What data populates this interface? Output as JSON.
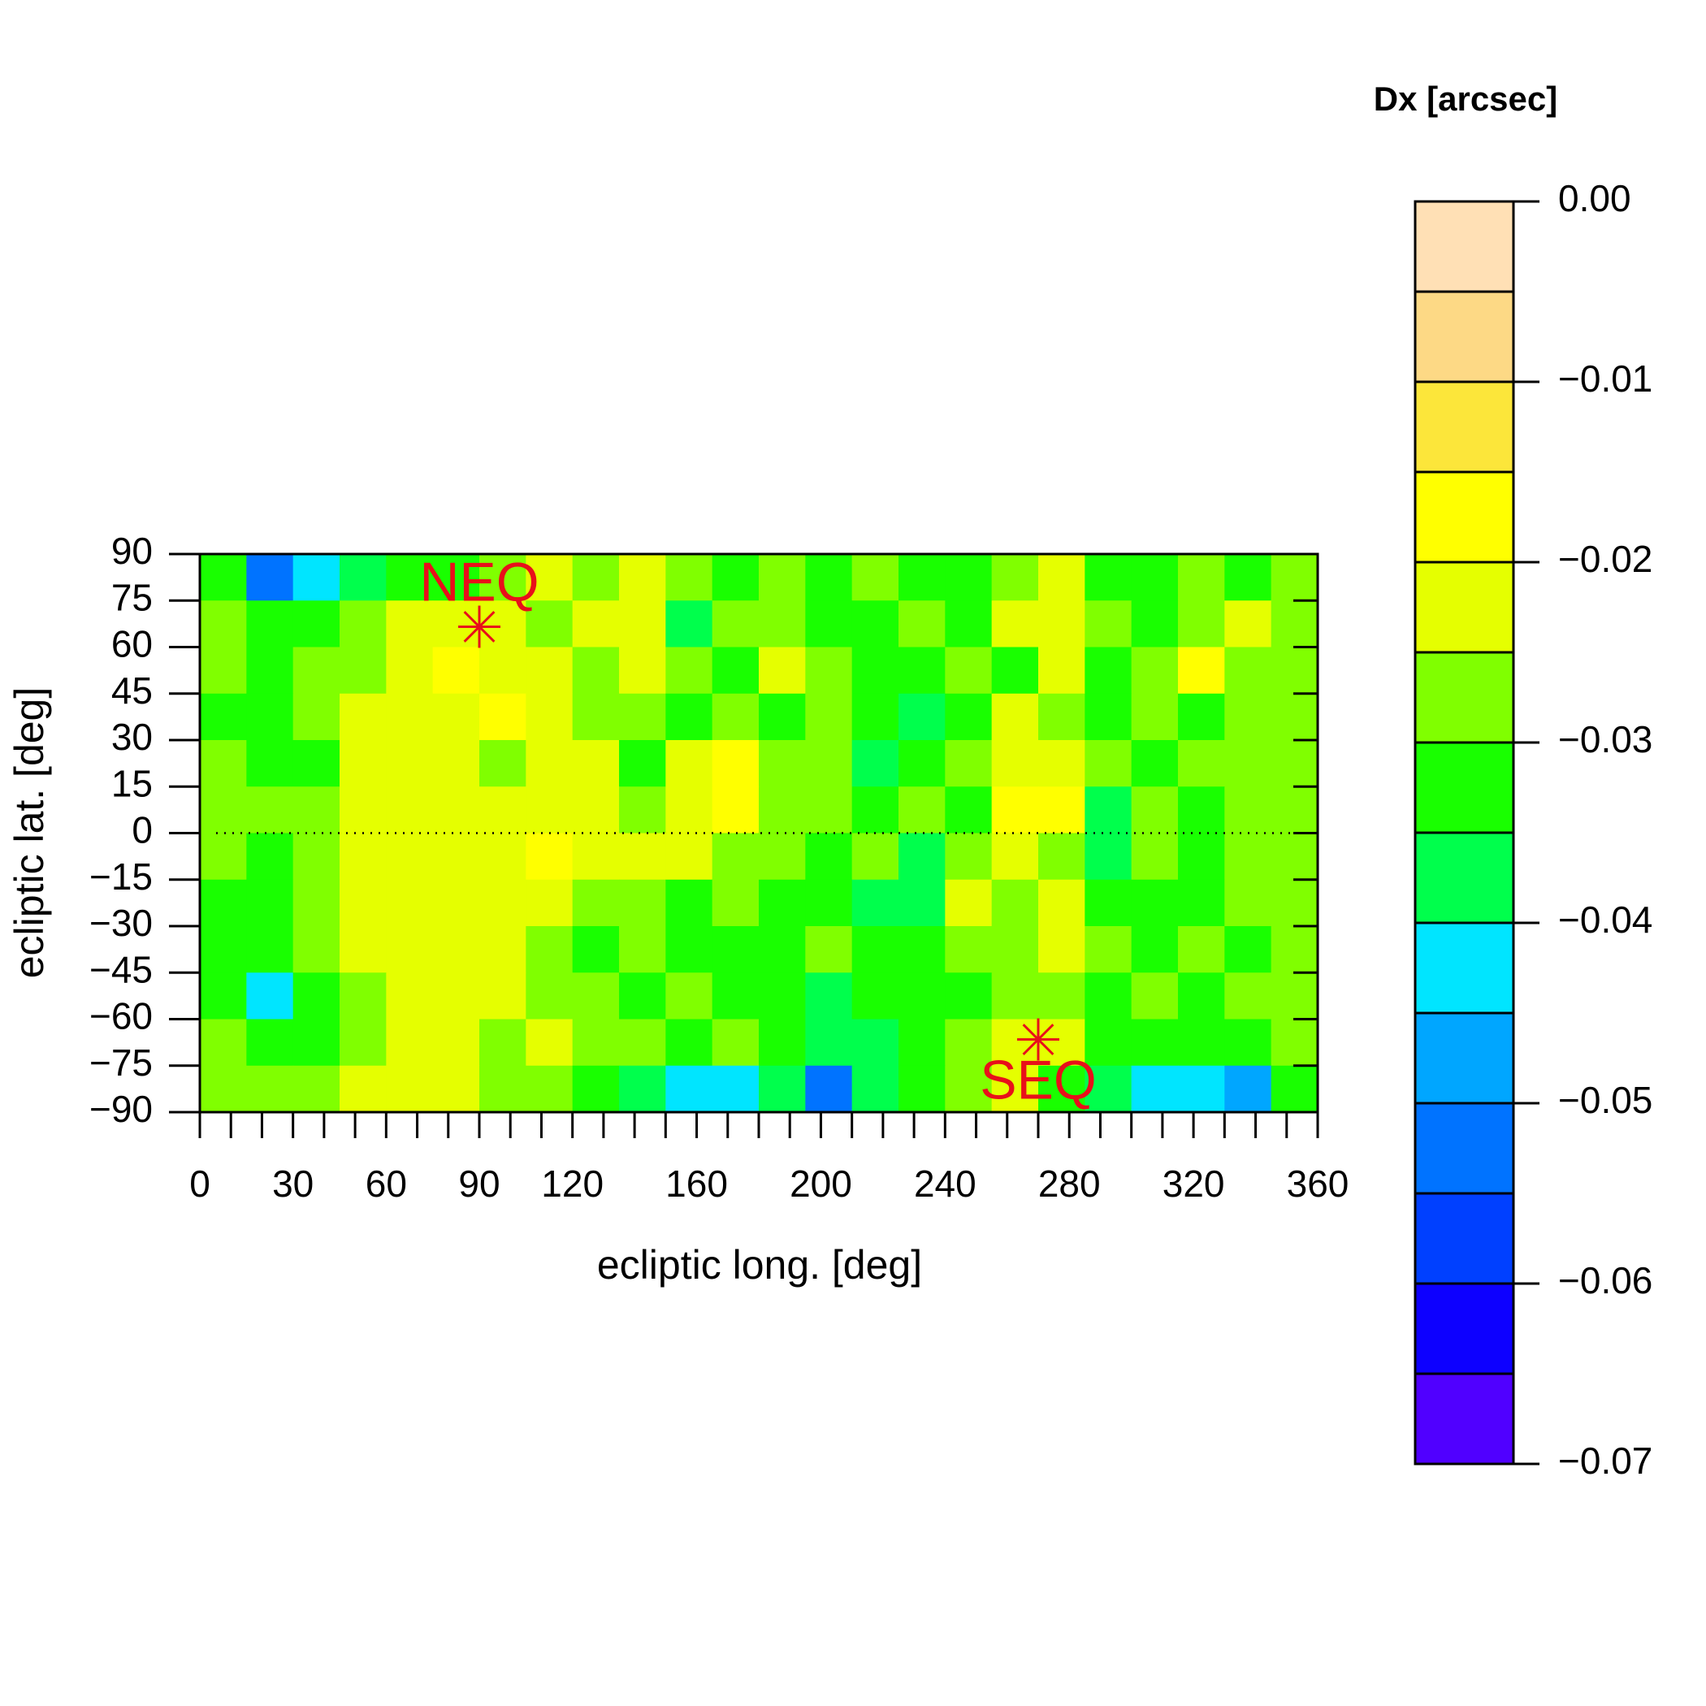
{
  "chart_data": {
    "type": "contour",
    "title": "Dx [arcsec]",
    "x_label": "ecliptic long. [deg]",
    "y_label": "ecliptic lat. [deg]",
    "xlim": [
      0,
      360
    ],
    "ylim": [
      -90,
      90
    ],
    "xticks": [
      0,
      30,
      60,
      90,
      120,
      160,
      200,
      240,
      280,
      320,
      360
    ],
    "xminorticks": [
      0,
      10,
      20,
      30,
      40,
      50,
      60,
      70,
      80,
      90,
      100,
      110,
      120,
      130,
      140,
      150,
      160,
      170,
      180,
      190,
      200,
      210,
      220,
      230,
      240,
      250,
      260,
      270,
      280,
      290,
      300,
      310,
      320,
      330,
      340,
      350,
      360
    ],
    "yticks": [
      {
        "value": 90,
        "label": "90"
      },
      {
        "value": 75,
        "label": "75"
      },
      {
        "value": 60,
        "label": "60"
      },
      {
        "value": 45,
        "label": "45"
      },
      {
        "value": 30,
        "label": "30"
      },
      {
        "value": 15,
        "label": "15"
      },
      {
        "value": 0,
        "label": "0"
      },
      {
        "value": -15,
        "label": "−15"
      },
      {
        "value": -30,
        "label": "−30"
      },
      {
        "value": -45,
        "label": "−45"
      },
      {
        "value": -60,
        "label": "−60"
      },
      {
        "value": -75,
        "label": "−75"
      },
      {
        "value": -90,
        "label": "−90"
      }
    ],
    "hline": 0,
    "zlim": [
      -0.07,
      0
    ],
    "zticks": [
      {
        "value": 0,
        "label": "0.00"
      },
      {
        "value": -0.01,
        "label": "−0.01"
      },
      {
        "value": -0.02,
        "label": "−0.02"
      },
      {
        "value": -0.03,
        "label": "−0.03"
      },
      {
        "value": -0.04,
        "label": "−0.04"
      },
      {
        "value": -0.05,
        "label": "−0.05"
      },
      {
        "value": -0.06,
        "label": "−0.06"
      },
      {
        "value": -0.07,
        "label": "−0.07"
      }
    ],
    "levels": [
      0,
      -0.005,
      -0.01,
      -0.015,
      -0.02,
      -0.025,
      -0.03,
      -0.035,
      -0.04,
      -0.045,
      -0.05,
      -0.055,
      -0.06,
      -0.065,
      -0.07
    ],
    "colors": [
      "#ffe0b5",
      "#fdd985",
      "#fce63a",
      "#ffff00",
      "#e5ff00",
      "#80ff00",
      "#19ff00",
      "#00ff4c",
      "#00e5ff",
      "#00a6ff",
      "#0073ff",
      "#0040ff",
      "#0d00ff",
      "#5000ff"
    ],
    "x": [
      7.5,
      22.5,
      37.5,
      52.5,
      67.5,
      82.5,
      97.5,
      112.5,
      127.5,
      142.5,
      157.5,
      172.5,
      187.5,
      202.5,
      217.5,
      232.5,
      247.5,
      262.5,
      277.5,
      292.5,
      307.5,
      322.5,
      337.5,
      352.5
    ],
    "y": [
      82.5,
      67.5,
      52.5,
      37.5,
      22.5,
      7.5,
      -7.5,
      -22.5,
      -37.5,
      -52.5,
      -67.5,
      -82.5
    ],
    "z": [
      [
        -0.03,
        -0.05,
        -0.04,
        -0.035,
        -0.03,
        -0.03,
        -0.025,
        -0.02,
        -0.025,
        -0.02,
        -0.025,
        -0.03,
        -0.025,
        -0.03,
        -0.025,
        -0.03,
        -0.03,
        -0.025,
        -0.02,
        -0.03,
        -0.03,
        -0.025,
        -0.03,
        -0.025
      ],
      [
        -0.025,
        -0.03,
        -0.03,
        -0.025,
        -0.02,
        -0.02,
        -0.02,
        -0.025,
        -0.02,
        -0.02,
        -0.035,
        -0.025,
        -0.025,
        -0.03,
        -0.03,
        -0.025,
        -0.03,
        -0.02,
        -0.02,
        -0.025,
        -0.03,
        -0.025,
        -0.02,
        -0.025
      ],
      [
        -0.025,
        -0.03,
        -0.025,
        -0.025,
        -0.02,
        -0.015,
        -0.02,
        -0.02,
        -0.025,
        -0.02,
        -0.025,
        -0.03,
        -0.02,
        -0.025,
        -0.03,
        -0.03,
        -0.025,
        -0.03,
        -0.02,
        -0.03,
        -0.025,
        -0.015,
        -0.025,
        -0.025
      ],
      [
        -0.03,
        -0.03,
        -0.025,
        -0.02,
        -0.02,
        -0.02,
        -0.015,
        -0.02,
        -0.025,
        -0.025,
        -0.03,
        -0.025,
        -0.03,
        -0.025,
        -0.03,
        -0.035,
        -0.03,
        -0.02,
        -0.025,
        -0.03,
        -0.025,
        -0.03,
        -0.025,
        -0.025
      ],
      [
        -0.025,
        -0.03,
        -0.03,
        -0.02,
        -0.02,
        -0.02,
        -0.025,
        -0.02,
        -0.02,
        -0.03,
        -0.02,
        -0.015,
        -0.025,
        -0.025,
        -0.035,
        -0.03,
        -0.025,
        -0.02,
        -0.02,
        -0.025,
        -0.03,
        -0.025,
        -0.025,
        -0.025
      ],
      [
        -0.025,
        -0.025,
        -0.025,
        -0.02,
        -0.02,
        -0.02,
        -0.02,
        -0.02,
        -0.02,
        -0.025,
        -0.02,
        -0.015,
        -0.025,
        -0.025,
        -0.03,
        -0.025,
        -0.03,
        -0.015,
        -0.015,
        -0.035,
        -0.025,
        -0.03,
        -0.025,
        -0.025
      ],
      [
        -0.025,
        -0.03,
        -0.025,
        -0.02,
        -0.02,
        -0.02,
        -0.02,
        -0.015,
        -0.02,
        -0.02,
        -0.02,
        -0.025,
        -0.025,
        -0.03,
        -0.025,
        -0.035,
        -0.025,
        -0.02,
        -0.025,
        -0.035,
        -0.025,
        -0.03,
        -0.025,
        -0.025
      ],
      [
        -0.03,
        -0.03,
        -0.025,
        -0.02,
        -0.02,
        -0.02,
        -0.02,
        -0.02,
        -0.025,
        -0.025,
        -0.03,
        -0.025,
        -0.03,
        -0.03,
        -0.035,
        -0.035,
        -0.02,
        -0.025,
        -0.02,
        -0.03,
        -0.03,
        -0.03,
        -0.025,
        -0.025
      ],
      [
        -0.03,
        -0.03,
        -0.025,
        -0.02,
        -0.02,
        -0.02,
        -0.02,
        -0.025,
        -0.03,
        -0.025,
        -0.03,
        -0.03,
        -0.03,
        -0.025,
        -0.03,
        -0.03,
        -0.025,
        -0.025,
        -0.02,
        -0.025,
        -0.03,
        -0.025,
        -0.03,
        -0.025
      ],
      [
        -0.03,
        -0.04,
        -0.03,
        -0.025,
        -0.02,
        -0.02,
        -0.02,
        -0.025,
        -0.025,
        -0.03,
        -0.025,
        -0.03,
        -0.03,
        -0.035,
        -0.03,
        -0.03,
        -0.03,
        -0.025,
        -0.025,
        -0.03,
        -0.025,
        -0.03,
        -0.025,
        -0.025
      ],
      [
        -0.025,
        -0.03,
        -0.03,
        -0.025,
        -0.02,
        -0.02,
        -0.025,
        -0.02,
        -0.025,
        -0.025,
        -0.03,
        -0.025,
        -0.03,
        -0.035,
        -0.035,
        -0.03,
        -0.025,
        -0.02,
        -0.02,
        -0.03,
        -0.03,
        -0.03,
        -0.03,
        -0.025
      ],
      [
        -0.025,
        -0.025,
        -0.025,
        -0.02,
        -0.02,
        -0.02,
        -0.025,
        -0.025,
        -0.03,
        -0.035,
        -0.04,
        -0.04,
        -0.035,
        -0.05,
        -0.035,
        -0.03,
        -0.025,
        -0.02,
        -0.03,
        -0.035,
        -0.04,
        -0.04,
        -0.045,
        -0.03
      ]
    ],
    "annotations": [
      {
        "label": "NEQ",
        "x": 90,
        "y": 66.56
      },
      {
        "label": "SEQ",
        "x": 270,
        "y": -66.56
      }
    ],
    "annotation_color": "#e8101a"
  }
}
